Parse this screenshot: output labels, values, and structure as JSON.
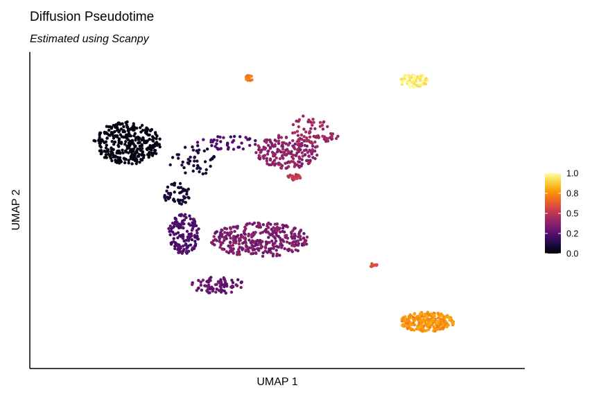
{
  "chart_data": {
    "type": "scatter",
    "title": "Diffusion Pseudotime",
    "subtitle": "Estimated using Scanpy",
    "xlabel": "UMAP 1",
    "ylabel": "UMAP 2",
    "grid": false,
    "xticks": false,
    "yticks": false,
    "xlim": [
      0,
      100
    ],
    "ylim": [
      0,
      100
    ],
    "legend": {
      "placement": "right",
      "type": "colorbar",
      "min": 0.0,
      "max": 1.0,
      "ticks": [
        {
          "value": 0.0,
          "label": "0.0"
        },
        {
          "value": 0.25,
          "label": "0.2"
        },
        {
          "value": 0.5,
          "label": "0.5"
        },
        {
          "value": 0.75,
          "label": "0.8"
        },
        {
          "value": 1.0,
          "label": "1.0"
        }
      ],
      "colormap": [
        "#000004",
        "#1b0c41",
        "#4a0c6b",
        "#781c6d",
        "#a52c60",
        "#cf4446",
        "#ed6925",
        "#fb9b06",
        "#f7d13d",
        "#fcffa4"
      ]
    },
    "clusters": [
      {
        "cx": 17.5,
        "cy": 74,
        "rx": 7.5,
        "ry": 7.5,
        "n": 330,
        "pmin": 0.0,
        "pmax": 0.05
      },
      {
        "cx": 28.5,
        "cy": 56,
        "rx": 3,
        "ry": 4,
        "n": 55,
        "pmin": 0.05,
        "pmax": 0.14
      },
      {
        "cx": 32,
        "cy": 68,
        "rx": 5.5,
        "ry": 5.5,
        "n": 45,
        "pmin": 0.06,
        "pmax": 0.15
      },
      {
        "cx": 40,
        "cy": 74,
        "rx": 7,
        "ry": 2.5,
        "n": 40,
        "pmin": 0.18,
        "pmax": 0.28
      },
      {
        "cx": 53,
        "cy": 71,
        "rx": 7,
        "ry": 6,
        "n": 200,
        "pmin": 0.33,
        "pmax": 0.45
      },
      {
        "cx": 58,
        "cy": 79,
        "rx": 4,
        "ry": 5,
        "n": 45,
        "pmin": 0.38,
        "pmax": 0.48
      },
      {
        "cx": 54.5,
        "cy": 62,
        "rx": 1.5,
        "ry": 1,
        "n": 25,
        "pmin": 0.47,
        "pmax": 0.55
      },
      {
        "cx": 61.5,
        "cy": 76,
        "rx": 3,
        "ry": 1.5,
        "n": 22,
        "pmin": 0.38,
        "pmax": 0.46
      },
      {
        "cx": 30,
        "cy": 42,
        "rx": 3.5,
        "ry": 7,
        "n": 140,
        "pmin": 0.18,
        "pmax": 0.28
      },
      {
        "cx": 47,
        "cy": 40,
        "rx": 11,
        "ry": 6,
        "n": 330,
        "pmin": 0.28,
        "pmax": 0.4
      },
      {
        "cx": 37.5,
        "cy": 24,
        "rx": 6,
        "ry": 3,
        "n": 80,
        "pmin": 0.24,
        "pmax": 0.34
      },
      {
        "cx": 44.5,
        "cy": 97,
        "rx": 1,
        "ry": 1,
        "n": 18,
        "pmin": 0.68,
        "pmax": 0.74
      },
      {
        "cx": 81,
        "cy": 96,
        "rx": 3.2,
        "ry": 2.5,
        "n": 75,
        "pmin": 0.9,
        "pmax": 1.0
      },
      {
        "cx": 72,
        "cy": 31,
        "rx": 0.9,
        "ry": 0.6,
        "n": 9,
        "pmin": 0.56,
        "pmax": 0.62
      },
      {
        "cx": 84,
        "cy": 11,
        "rx": 6,
        "ry": 3.5,
        "n": 240,
        "pmin": 0.7,
        "pmax": 0.82
      }
    ]
  }
}
